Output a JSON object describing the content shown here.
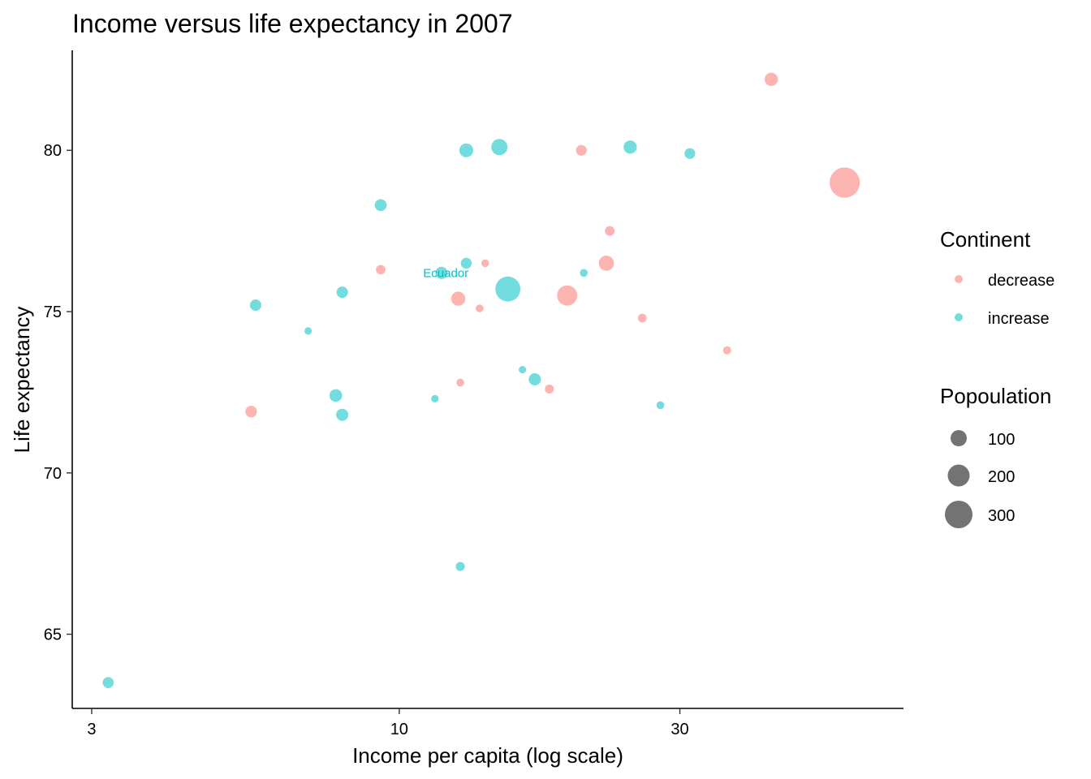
{
  "chart_data": {
    "type": "scatter",
    "title": "Income versus life expectancy in 2007",
    "xlabel": "Income per capita (log scale)",
    "ylabel": "Life expectancy",
    "x_scale": "log",
    "xlim": [
      2.78,
      72
    ],
    "ylim": [
      62.7,
      83.1
    ],
    "x_ticks": [
      3,
      10,
      30
    ],
    "y_ticks": [
      65,
      70,
      75,
      80
    ],
    "grid": false,
    "colors": {
      "decrease": "#F8766D",
      "increase": "#00BFC4"
    },
    "point_alpha": 0.55,
    "legend_color": {
      "title": "Continent",
      "placement": "right",
      "entries": [
        {
          "key": "decrease",
          "label": "decrease"
        },
        {
          "key": "increase",
          "label": "increase"
        }
      ]
    },
    "legend_size": {
      "title": "Popoulation",
      "placement": "right",
      "entries": [
        {
          "label": "100",
          "value": 100
        },
        {
          "label": "200",
          "value": 200
        },
        {
          "label": "300",
          "value": 300
        }
      ]
    },
    "annotations": [
      {
        "text": "Ecuador",
        "x": 12.0,
        "y": 76.2,
        "series": "increase"
      }
    ],
    "series": [
      {
        "name": "decrease",
        "points": [
          {
            "x": 42.9,
            "y": 82.2,
            "pop": 33
          },
          {
            "x": 20.4,
            "y": 80.0,
            "pop": 16
          },
          {
            "x": 57.2,
            "y": 79.0,
            "pop": 301
          },
          {
            "x": 22.8,
            "y": 77.5,
            "pop": 11
          },
          {
            "x": 22.5,
            "y": 76.5,
            "pop": 50
          },
          {
            "x": 9.3,
            "y": 76.3,
            "pop": 10
          },
          {
            "x": 14.0,
            "y": 76.5,
            "pop": 4
          },
          {
            "x": 12.6,
            "y": 75.4,
            "pop": 40
          },
          {
            "x": 19.3,
            "y": 75.5,
            "pop": 110
          },
          {
            "x": 13.7,
            "y": 75.1,
            "pop": 4
          },
          {
            "x": 25.9,
            "y": 74.8,
            "pop": 7
          },
          {
            "x": 36.1,
            "y": 73.8,
            "pop": 5
          },
          {
            "x": 12.7,
            "y": 72.8,
            "pop": 4
          },
          {
            "x": 18.0,
            "y": 72.6,
            "pop": 8
          },
          {
            "x": 5.6,
            "y": 71.9,
            "pop": 21
          }
        ]
      },
      {
        "name": "increase",
        "points": [
          {
            "x": 13.0,
            "y": 80.0,
            "pop": 38
          },
          {
            "x": 14.8,
            "y": 80.1,
            "pop": 60
          },
          {
            "x": 24.7,
            "y": 80.1,
            "pop": 33
          },
          {
            "x": 31.2,
            "y": 79.9,
            "pop": 16
          },
          {
            "x": 9.3,
            "y": 78.3,
            "pop": 23
          },
          {
            "x": 13.0,
            "y": 76.5,
            "pop": 17
          },
          {
            "x": 11.8,
            "y": 76.2,
            "pop": 25
          },
          {
            "x": 15.3,
            "y": 75.7,
            "pop": 190
          },
          {
            "x": 20.6,
            "y": 76.2,
            "pop": 4
          },
          {
            "x": 8.0,
            "y": 75.6,
            "pop": 20
          },
          {
            "x": 5.7,
            "y": 75.2,
            "pop": 20
          },
          {
            "x": 7.0,
            "y": 74.4,
            "pop": 3
          },
          {
            "x": 16.2,
            "y": 73.2,
            "pop": 3
          },
          {
            "x": 17.0,
            "y": 72.9,
            "pop": 25
          },
          {
            "x": 7.8,
            "y": 72.4,
            "pop": 28
          },
          {
            "x": 11.5,
            "y": 72.3,
            "pop": 3
          },
          {
            "x": 8.0,
            "y": 71.8,
            "pop": 25
          },
          {
            "x": 27.8,
            "y": 72.1,
            "pop": 4
          },
          {
            "x": 12.7,
            "y": 67.1,
            "pop": 8
          },
          {
            "x": 3.2,
            "y": 63.5,
            "pop": 18
          }
        ]
      }
    ]
  }
}
